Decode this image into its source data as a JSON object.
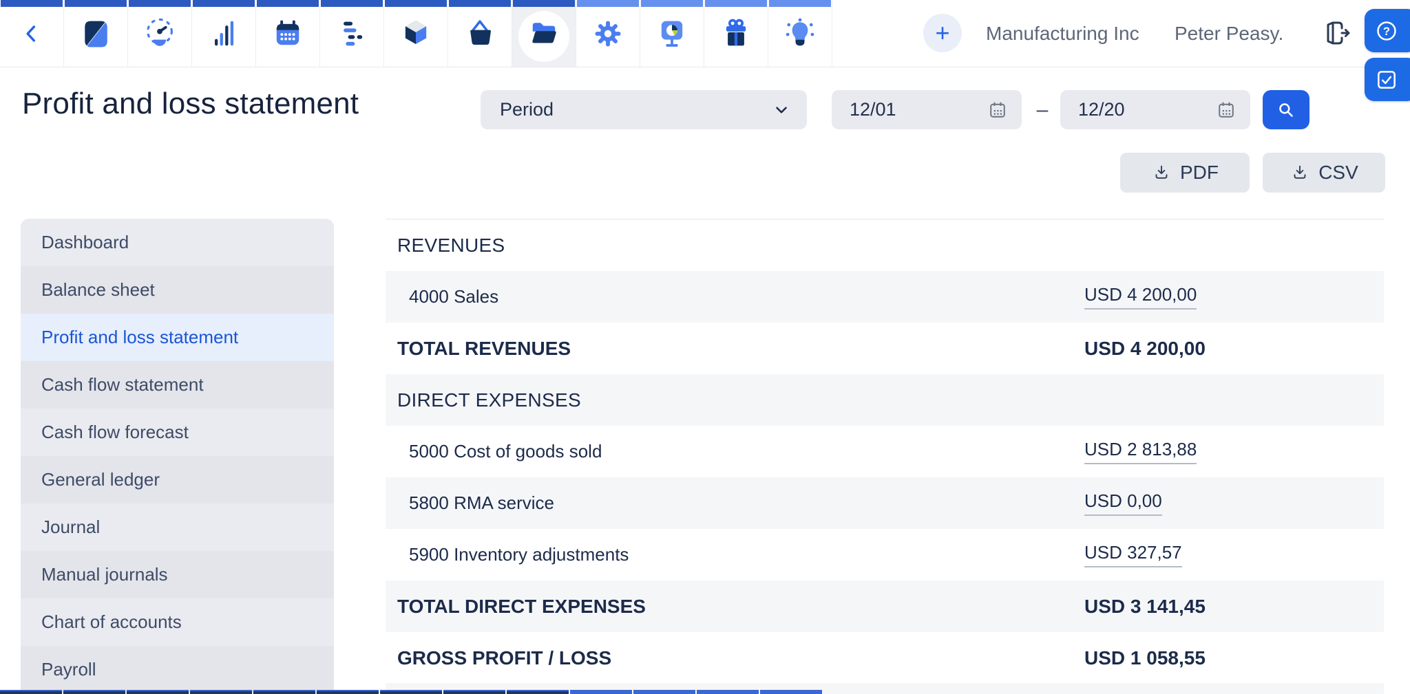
{
  "toolbar": {
    "apps": [
      {
        "icon": "back-icon",
        "group": "dark",
        "selected": false
      },
      {
        "icon": "app-logo-icon",
        "group": "dark",
        "selected": false
      },
      {
        "icon": "dashboard-gauge-icon",
        "group": "dark",
        "selected": false
      },
      {
        "icon": "bar-chart-icon",
        "group": "dark",
        "selected": false
      },
      {
        "icon": "calendar-app-icon",
        "group": "dark",
        "selected": false
      },
      {
        "icon": "tasks-icon",
        "group": "dark",
        "selected": false
      },
      {
        "icon": "cube-icon",
        "group": "dark",
        "selected": false
      },
      {
        "icon": "basket-icon",
        "group": "dark",
        "selected": false
      },
      {
        "icon": "folder-open-icon",
        "group": "dark",
        "selected": true
      },
      {
        "icon": "settings-gear-icon",
        "group": "light",
        "selected": false
      },
      {
        "icon": "presentation-pie-icon",
        "group": "light",
        "selected": false
      },
      {
        "icon": "gift-icon",
        "group": "light",
        "selected": false
      },
      {
        "icon": "lightbulb-icon",
        "group": "light",
        "selected": false
      }
    ],
    "add_label": "+",
    "company": "Manufacturing Inc",
    "user": "Peter Peasy."
  },
  "header": {
    "title": "Profit and loss statement",
    "period_label": "Period",
    "date_from": "12/01",
    "date_to": "12/20",
    "range_dash": "–",
    "pdf_label": "PDF",
    "csv_label": "CSV"
  },
  "sidebar": {
    "items": [
      {
        "label": "Dashboard",
        "active": false
      },
      {
        "label": "Balance sheet",
        "active": false
      },
      {
        "label": "Profit and loss statement",
        "active": true
      },
      {
        "label": "Cash flow statement",
        "active": false
      },
      {
        "label": "Cash flow forecast",
        "active": false
      },
      {
        "label": "General ledger",
        "active": false
      },
      {
        "label": "Journal",
        "active": false
      },
      {
        "label": "Manual journals",
        "active": false
      },
      {
        "label": "Chart of accounts",
        "active": false
      },
      {
        "label": "Payroll",
        "active": false
      }
    ]
  },
  "report": {
    "rows": [
      {
        "type": "section",
        "label": "REVENUES",
        "amount": ""
      },
      {
        "type": "account",
        "label": "4000 Sales",
        "amount": "USD 4 200,00"
      },
      {
        "type": "total",
        "label": "TOTAL REVENUES",
        "amount": "USD 4 200,00"
      },
      {
        "type": "section",
        "label": "DIRECT EXPENSES",
        "amount": ""
      },
      {
        "type": "account",
        "label": "5000 Cost of goods sold",
        "amount": "USD 2 813,88"
      },
      {
        "type": "account",
        "label": "5800 RMA service",
        "amount": "USD 0,00"
      },
      {
        "type": "account",
        "label": "5900 Inventory adjustments",
        "amount": "USD 327,57"
      },
      {
        "type": "total",
        "label": "TOTAL DIRECT EXPENSES",
        "amount": "USD 3 141,45"
      },
      {
        "type": "total",
        "label": "GROSS PROFIT / LOSS",
        "amount": "USD 1 058,55"
      }
    ]
  },
  "colors": {
    "accent_blue": "#2160e4",
    "strip_dark": "#2d5ac1",
    "strip_light": "#6590ee",
    "active_link": "#1a56d6",
    "navy_text": "#1c2b4a"
  }
}
